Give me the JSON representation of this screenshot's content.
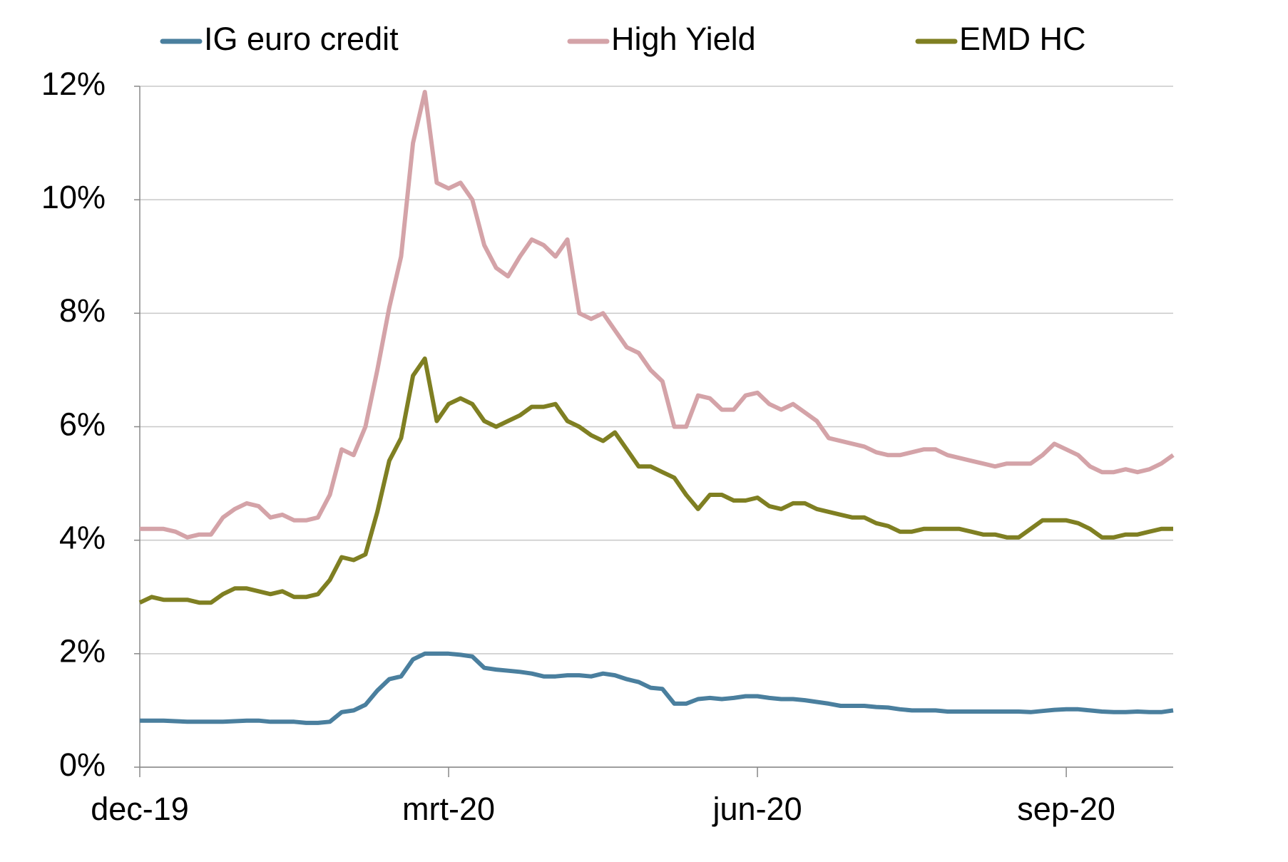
{
  "chart_data": {
    "type": "line",
    "categories": [
      "dec-19",
      null,
      null,
      null,
      null,
      null,
      null,
      null,
      null,
      null,
      null,
      null,
      null,
      null,
      null,
      null,
      null,
      null,
      null,
      null,
      null,
      null,
      null,
      null,
      null,
      null,
      "mrt-20",
      null,
      null,
      null,
      null,
      null,
      null,
      null,
      null,
      null,
      null,
      null,
      null,
      null,
      null,
      null,
      null,
      null,
      null,
      null,
      null,
      null,
      null,
      null,
      null,
      null,
      "jun-20",
      null,
      null,
      null,
      null,
      null,
      null,
      null,
      null,
      null,
      null,
      null,
      null,
      null,
      null,
      null,
      null,
      null,
      null,
      null,
      null,
      null,
      null,
      null,
      null,
      null,
      "sep-20",
      null,
      null,
      null,
      null,
      null,
      null,
      null,
      null,
      null
    ],
    "series": [
      {
        "name": "IG euro credit",
        "color": "#4a7f9e",
        "values": [
          0.82,
          0.82,
          0.82,
          0.81,
          0.8,
          0.8,
          0.8,
          0.8,
          0.81,
          0.82,
          0.82,
          0.8,
          0.8,
          0.8,
          0.78,
          0.78,
          0.8,
          0.97,
          1.0,
          1.1,
          1.35,
          1.55,
          1.6,
          1.9,
          2.0,
          2.0,
          2.0,
          1.98,
          1.95,
          1.75,
          1.72,
          1.7,
          1.68,
          1.65,
          1.6,
          1.6,
          1.62,
          1.62,
          1.6,
          1.65,
          1.62,
          1.55,
          1.5,
          1.4,
          1.38,
          1.12,
          1.12,
          1.2,
          1.22,
          1.2,
          1.22,
          1.25,
          1.25,
          1.22,
          1.2,
          1.2,
          1.18,
          1.15,
          1.12,
          1.08,
          1.08,
          1.08,
          1.06,
          1.05,
          1.02,
          1.0,
          1.0,
          1.0,
          0.98,
          0.98,
          0.98,
          0.98,
          0.98,
          0.98,
          0.98,
          0.97,
          0.99,
          1.01,
          1.02,
          1.02,
          1.0,
          0.98,
          0.97,
          0.97,
          0.98,
          0.97,
          0.97,
          1.0
        ]
      },
      {
        "name": "High Yield",
        "color": "#d4a3a8",
        "values": [
          4.2,
          4.2,
          4.2,
          4.15,
          4.05,
          4.1,
          4.1,
          4.4,
          4.55,
          4.65,
          4.6,
          4.4,
          4.45,
          4.35,
          4.35,
          4.4,
          4.8,
          5.6,
          5.5,
          6.0,
          7.0,
          8.1,
          9.0,
          11.0,
          11.9,
          10.3,
          10.2,
          10.3,
          10.0,
          9.2,
          8.8,
          8.65,
          9.0,
          9.3,
          9.2,
          9.0,
          9.3,
          8.0,
          7.9,
          8.0,
          7.7,
          7.4,
          7.3,
          7.0,
          6.8,
          6.0,
          6.0,
          6.55,
          6.5,
          6.3,
          6.3,
          6.55,
          6.6,
          6.4,
          6.3,
          6.4,
          6.25,
          6.1,
          5.8,
          5.75,
          5.7,
          5.65,
          5.55,
          5.5,
          5.5,
          5.55,
          5.6,
          5.6,
          5.5,
          5.45,
          5.4,
          5.35,
          5.3,
          5.35,
          5.35,
          5.35,
          5.5,
          5.7,
          5.6,
          5.5,
          5.3,
          5.2,
          5.2,
          5.25,
          5.2,
          5.25,
          5.35,
          5.5
        ]
      },
      {
        "name": "EMD HC",
        "color": "#7f7f22",
        "values": [
          2.9,
          3.0,
          2.95,
          2.95,
          2.95,
          2.9,
          2.9,
          3.05,
          3.15,
          3.15,
          3.1,
          3.05,
          3.1,
          3.0,
          3.0,
          3.05,
          3.3,
          3.7,
          3.65,
          3.75,
          4.5,
          5.4,
          5.8,
          6.9,
          7.2,
          6.1,
          6.4,
          6.5,
          6.4,
          6.1,
          6.0,
          6.1,
          6.2,
          6.35,
          6.35,
          6.4,
          6.1,
          6.0,
          5.85,
          5.75,
          5.9,
          5.6,
          5.3,
          5.3,
          5.2,
          5.1,
          4.8,
          4.55,
          4.8,
          4.8,
          4.7,
          4.7,
          4.75,
          4.6,
          4.55,
          4.65,
          4.65,
          4.55,
          4.5,
          4.45,
          4.4,
          4.4,
          4.3,
          4.25,
          4.15,
          4.15,
          4.2,
          4.2,
          4.2,
          4.2,
          4.15,
          4.1,
          4.1,
          4.05,
          4.05,
          4.2,
          4.35,
          4.35,
          4.35,
          4.3,
          4.2,
          4.05,
          4.05,
          4.1,
          4.1,
          4.15,
          4.2,
          4.2
        ]
      }
    ],
    "ylim": [
      0,
      12
    ],
    "yticks": [
      {
        "value": 0,
        "label": "0%"
      },
      {
        "value": 2,
        "label": "2%"
      },
      {
        "value": 4,
        "label": "4%"
      },
      {
        "value": 6,
        "label": "6%"
      },
      {
        "value": 8,
        "label": "8%"
      },
      {
        "value": 10,
        "label": "10%"
      },
      {
        "value": 12,
        "label": "12%"
      }
    ],
    "grid": true,
    "legend": "top"
  }
}
